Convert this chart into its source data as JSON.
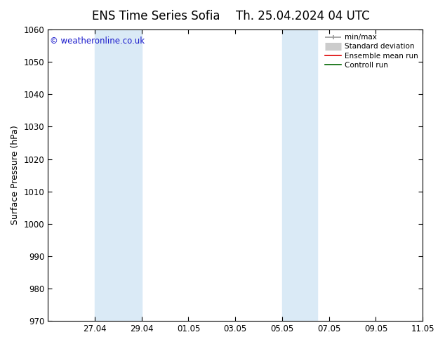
{
  "title_left": "ENS Time Series Sofia",
  "title_right": "Th. 25.04.2024 04 UTC",
  "ylabel": "Surface Pressure (hPa)",
  "ylim": [
    970,
    1060
  ],
  "yticks": [
    970,
    980,
    990,
    1000,
    1010,
    1020,
    1030,
    1040,
    1050,
    1060
  ],
  "xtick_labels": [
    "27.04",
    "29.04",
    "01.05",
    "03.05",
    "05.05",
    "07.05",
    "09.05",
    "11.05"
  ],
  "xtick_positions": [
    2,
    4,
    6,
    8,
    10,
    12,
    14,
    16
  ],
  "xlim": [
    0,
    16
  ],
  "shaded_regions": [
    {
      "x_start": 2,
      "x_end": 4,
      "color": "#daeaf6"
    },
    {
      "x_start": 10,
      "x_end": 11.5,
      "color": "#daeaf6"
    }
  ],
  "watermark": "© weatheronline.co.uk",
  "watermark_color": "#1a1acc",
  "legend_items": [
    {
      "label": "min/max",
      "color": "#999999",
      "lw": 1.2
    },
    {
      "label": "Standard deviation",
      "color": "#cccccc",
      "lw": 6
    },
    {
      "label": "Ensemble mean run",
      "color": "#dd0000",
      "lw": 1.2
    },
    {
      "label": "Controll run",
      "color": "#006600",
      "lw": 1.2
    }
  ],
  "background_color": "#ffffff",
  "plot_bg_color": "#ffffff",
  "title_fontsize": 12,
  "axis_label_fontsize": 9,
  "tick_fontsize": 8.5,
  "watermark_fontsize": 8.5
}
